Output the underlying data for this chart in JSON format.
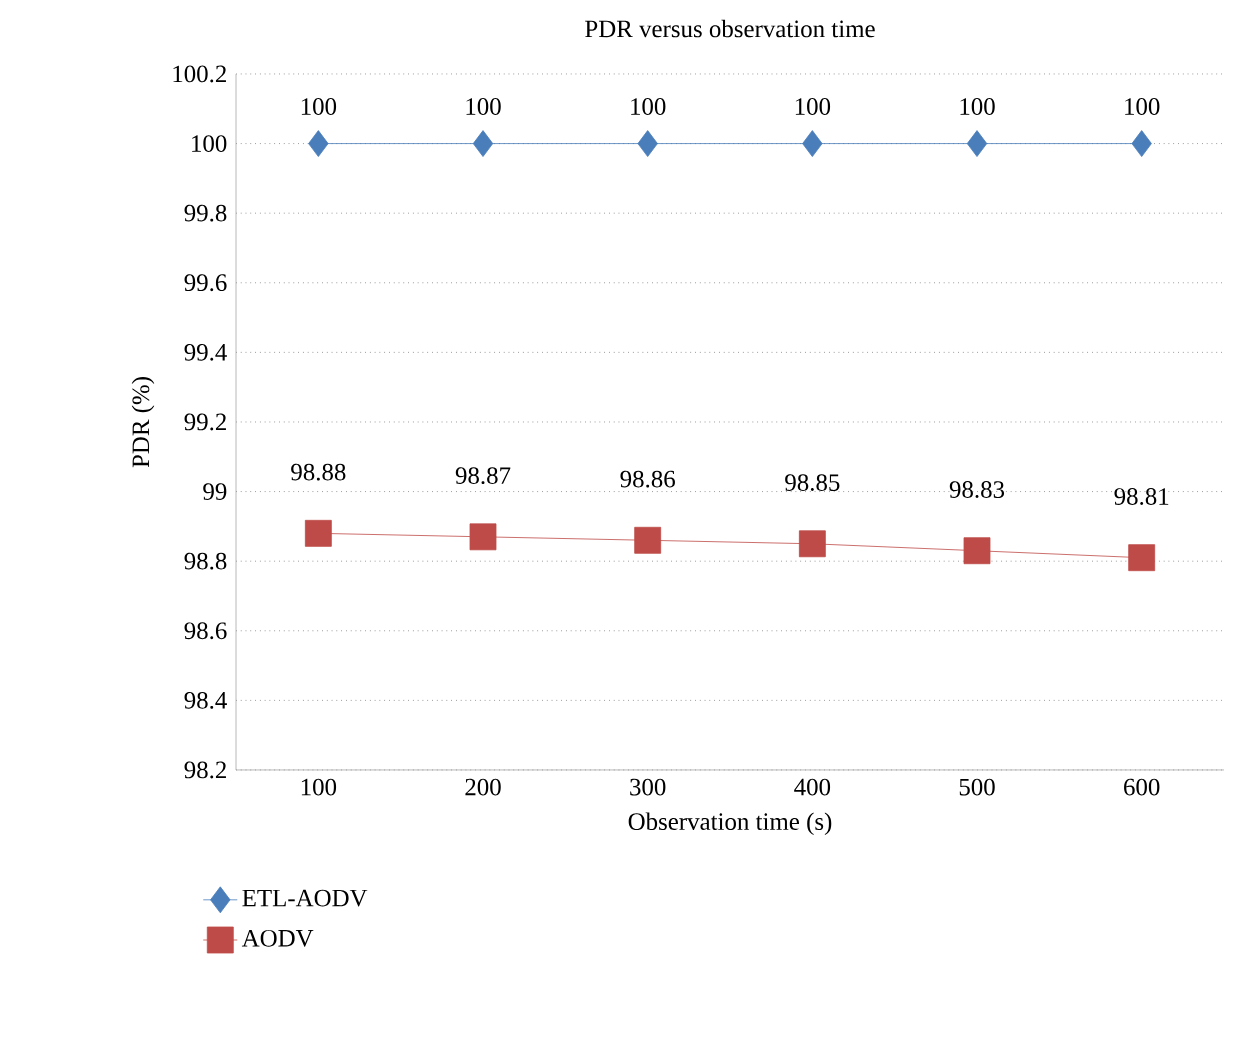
{
  "chart_data": {
    "type": "line",
    "title": "PDR versus observation time",
    "xlabel": "Observation time (s)",
    "ylabel": "PDR (%)",
    "categories": [
      "100",
      "200",
      "300",
      "400",
      "500",
      "600"
    ],
    "series": [
      {
        "name": "ETL-AODV",
        "color": "#4a7ebb",
        "marker": "diamond",
        "values": [
          100,
          100,
          100,
          100,
          100,
          100
        ]
      },
      {
        "name": "AODV",
        "color": "#be4b48",
        "marker": "square",
        "values": [
          98.88,
          98.87,
          98.86,
          98.85,
          98.83,
          98.81
        ]
      }
    ],
    "ylim": [
      98.2,
      100.2
    ],
    "yticks": [
      98.2,
      98.4,
      98.6,
      98.8,
      99,
      99.2,
      99.4,
      99.6,
      99.8,
      100,
      100.2
    ],
    "grid": "y",
    "legend": "bottom left",
    "line_style": "solid",
    "data_labels": true
  }
}
